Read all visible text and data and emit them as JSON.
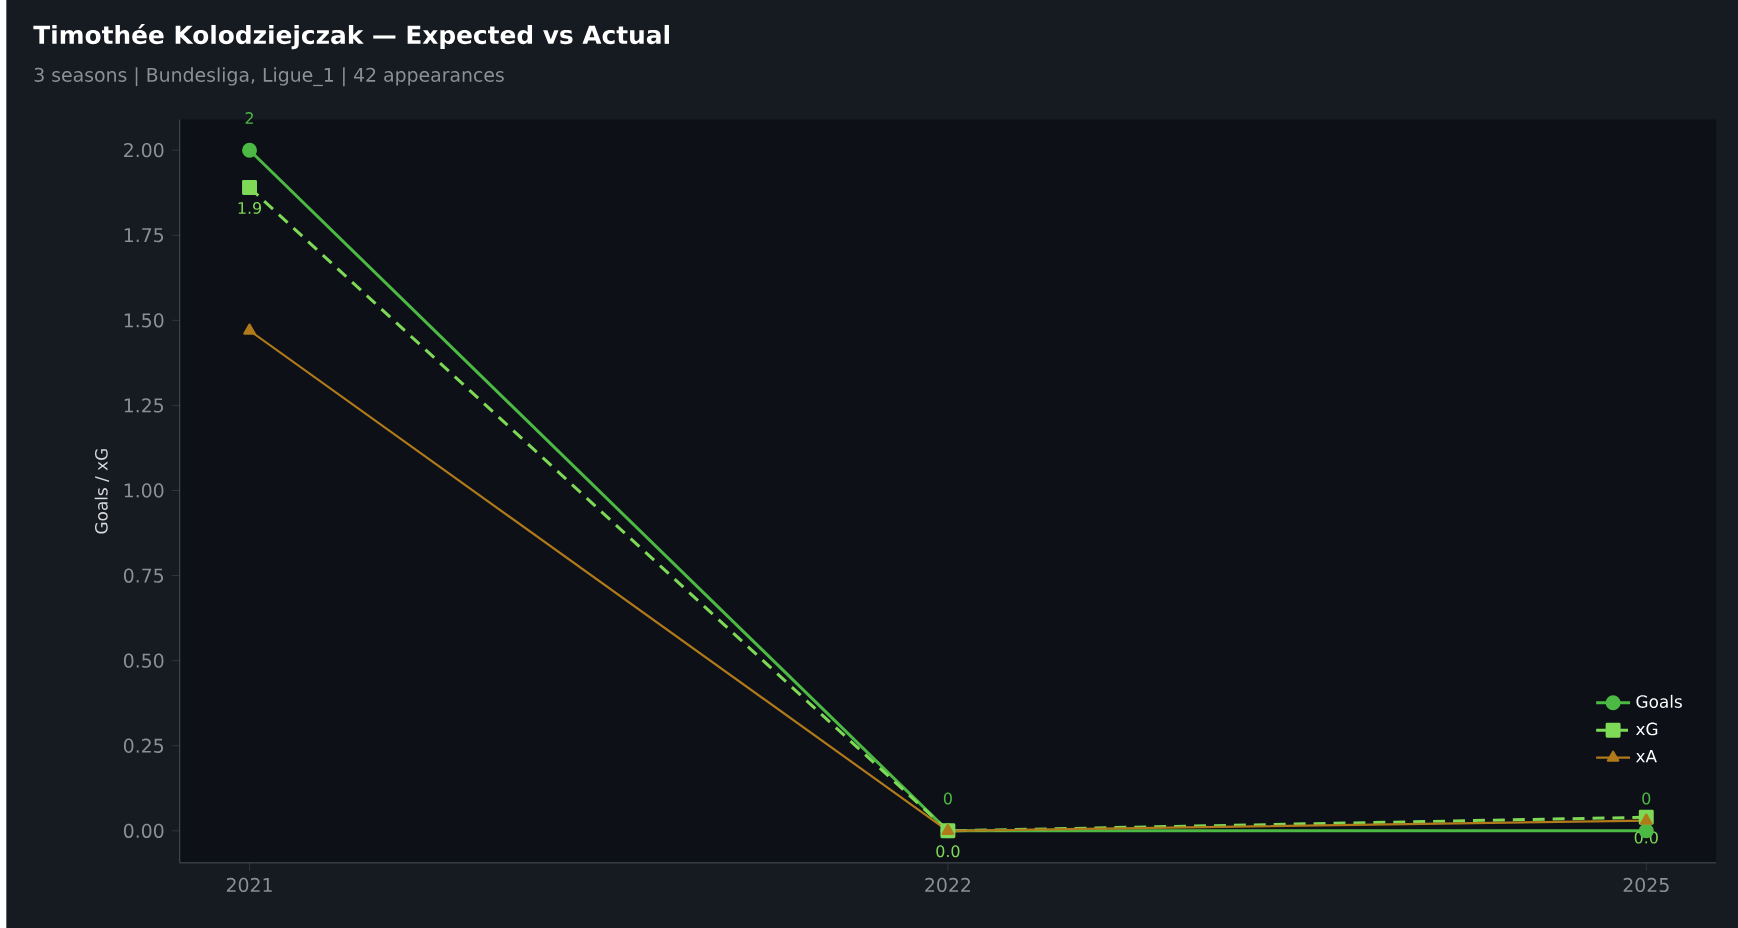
{
  "chart_data": {
    "type": "line",
    "title": "Timothée Kolodziejczak — Expected vs Actual",
    "subtitle": "3 seasons | Bundesliga, Ligue_1 | 42 appearances",
    "ylabel": "Goals / xG",
    "categories": [
      "2021",
      "2022",
      "2025"
    ],
    "series": [
      {
        "name": "Goals",
        "color": "#4cb944",
        "values": [
          2,
          0,
          0
        ],
        "marker": "circle",
        "line_style": "solid",
        "value_labels": [
          "2",
          "0",
          "0"
        ]
      },
      {
        "name": "xG",
        "color": "#7ed957",
        "values": [
          1.89,
          0.0,
          0.04
        ],
        "marker": "square",
        "line_style": "dashed",
        "value_labels": [
          "1.9",
          "0.0",
          "0.0"
        ]
      },
      {
        "name": "xA",
        "color": "#b07a1a",
        "values": [
          1.47,
          0.0,
          0.03
        ],
        "marker": "triangle",
        "line_style": "solid"
      }
    ],
    "ylim": [
      -0.094,
      2.09
    ],
    "yticks": [
      {
        "value": 0,
        "label": "0.00"
      },
      {
        "value": 0.25,
        "label": "0.25"
      },
      {
        "value": 0.5,
        "label": "0.50"
      },
      {
        "value": 0.75,
        "label": "0.75"
      },
      {
        "value": 1,
        "label": "1.00"
      },
      {
        "value": 1.25,
        "label": "1.25"
      },
      {
        "value": 1.5,
        "label": "1.50"
      },
      {
        "value": 1.75,
        "label": "1.75"
      },
      {
        "value": 2,
        "label": "2.00"
      }
    ],
    "grid": false,
    "legend": "bottom right"
  }
}
